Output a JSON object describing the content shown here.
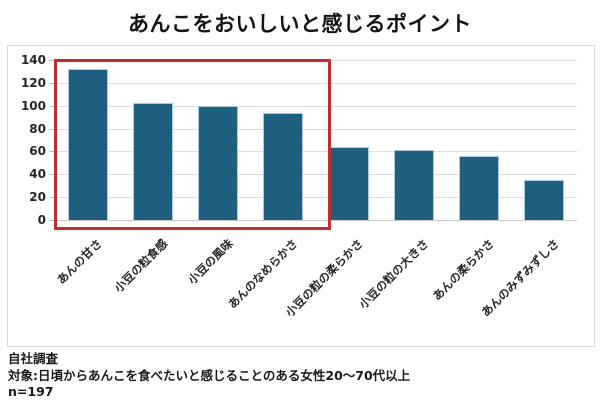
{
  "title": "あんこをおいしいと感じるポイント",
  "chart_data": {
    "type": "bar",
    "title": "あんこをおいしいと感じるポイント",
    "categories": [
      "あんの甘さ",
      "小豆の粒食感",
      "小豆の風味",
      "あんのなめらかさ",
      "小豆の粒の柔らかさ",
      "小豆の粒の大きさ",
      "あんの柔らかさ",
      "あんのみずみずしさ"
    ],
    "values": [
      132,
      102,
      100,
      94,
      64,
      61,
      56,
      35
    ],
    "ylim": [
      0,
      140
    ],
    "ytick_step": 20,
    "yticks": [
      0,
      20,
      40,
      60,
      80,
      100,
      120,
      140
    ],
    "grid": true,
    "legend": false,
    "xlabel": "",
    "ylabel": "",
    "bar_color": "#1e5f7f",
    "bar_border_color": "#a9cbe8",
    "gridline_color": "#dcdcdc",
    "highlight": {
      "start_index": 0,
      "end_index": 3,
      "border_color": "#bf2f2f"
    }
  },
  "footer": {
    "line1": "自社調査",
    "line2": "対象:日頃からあんこを食べたいと感じることのある女性20〜70代以上",
    "line3": "n=197"
  }
}
